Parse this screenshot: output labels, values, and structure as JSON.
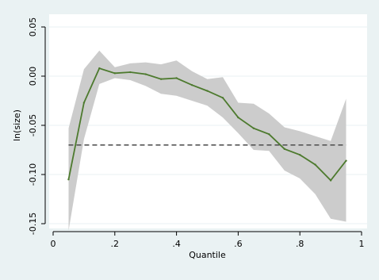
{
  "chart_data": {
    "type": "line",
    "title": "",
    "xlabel": "Quantile",
    "ylabel": "ln(size)",
    "xlim": [
      0,
      1
    ],
    "ylim": [
      -0.15,
      0.05
    ],
    "x_ticks": [
      0,
      0.2,
      0.4,
      0.6,
      0.8,
      1
    ],
    "x_tick_labels": [
      "0",
      ".2",
      ".4",
      ".6",
      ".8",
      "1"
    ],
    "y_ticks": [
      -0.15,
      -0.1,
      -0.05,
      0,
      0.05
    ],
    "y_tick_labels": [
      "-0.15",
      "-0.10",
      "-0.05",
      "0.00",
      "0.05"
    ],
    "grid": "horizontal",
    "series": [
      {
        "x": [
          0.05,
          0.1,
          0.15,
          0.2,
          0.25,
          0.3,
          0.35,
          0.4,
          0.45,
          0.5,
          0.55,
          0.6,
          0.65,
          0.7,
          0.75,
          0.8,
          0.85,
          0.9,
          0.95
        ],
        "values": [
          -0.105,
          -0.027,
          0.008,
          0.003,
          0.004,
          0.002,
          -0.003,
          -0.002,
          -0.009,
          -0.015,
          -0.022,
          -0.042,
          -0.053,
          -0.059,
          -0.074,
          -0.08,
          -0.09,
          -0.106,
          -0.086
        ],
        "color": "#4d7a2e"
      }
    ],
    "confidence_band": {
      "x": [
        0.05,
        0.1,
        0.15,
        0.2,
        0.25,
        0.3,
        0.35,
        0.4,
        0.45,
        0.5,
        0.55,
        0.6,
        0.65,
        0.7,
        0.75,
        0.8,
        0.85,
        0.9,
        0.95
      ],
      "upper": [
        -0.053,
        0.007,
        0.026,
        0.009,
        0.013,
        0.014,
        0.012,
        0.016,
        0.005,
        -0.003,
        -0.001,
        -0.027,
        -0.028,
        -0.038,
        -0.052,
        -0.056,
        -0.061,
        -0.066,
        -0.023
      ],
      "lower": [
        -0.157,
        -0.064,
        -0.008,
        -0.002,
        -0.004,
        -0.01,
        -0.018,
        -0.02,
        -0.025,
        -0.03,
        -0.042,
        -0.058,
        -0.075,
        -0.076,
        -0.096,
        -0.104,
        -0.12,
        -0.145,
        -0.148
      ],
      "color": "#cccccc"
    },
    "reference_line": {
      "y": -0.07,
      "style": "dashed",
      "color": "#555555"
    },
    "colors": {
      "outer_background": "#eaf2f3",
      "plot_background": "#ffffff",
      "grid": "#eaf2f3"
    }
  }
}
